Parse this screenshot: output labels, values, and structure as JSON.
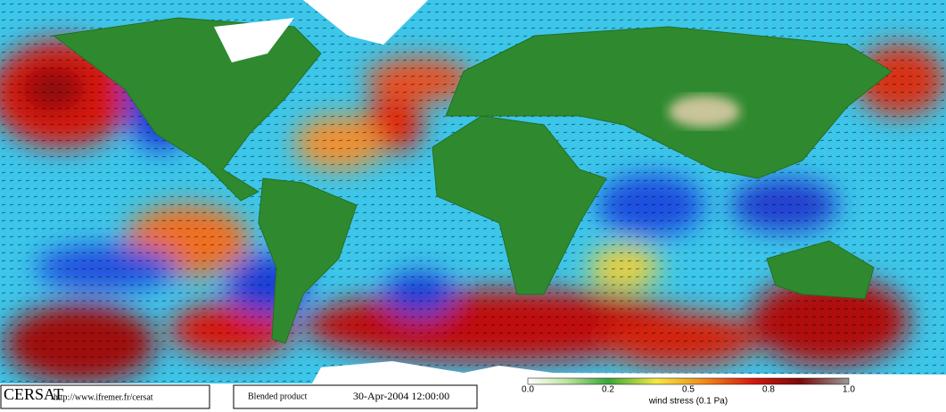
{
  "footer": {
    "logo": "CERSAT",
    "url": "http://www.ifremer.fr/cersat",
    "product": "Blended product",
    "date": "30-Apr-2004 12:00:00"
  },
  "colorbar": {
    "labels": [
      "0.0",
      "0.2",
      "0.5",
      "0.8",
      "1.0"
    ],
    "title": "wind stress (0.1 Pa)"
  }
}
